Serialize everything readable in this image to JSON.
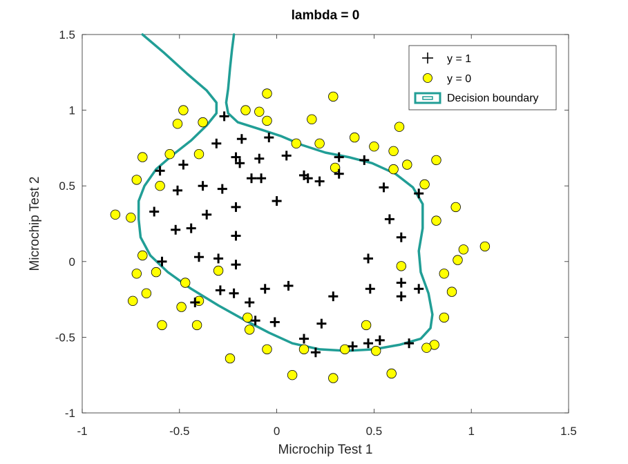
{
  "chart_data": {
    "type": "scatter",
    "title": "lambda = 0",
    "xlabel": "Microchip Test 1",
    "ylabel": "Microchip Test 2",
    "xlim": [
      -1,
      1.5
    ],
    "ylim": [
      -1,
      1.5
    ],
    "xticks": [
      "-1",
      "-0.5",
      "0",
      "0.5",
      "1",
      "1.5"
    ],
    "yticks": [
      "-1",
      "-0.5",
      "0",
      "0.5",
      "1",
      "1.5"
    ],
    "grid": false,
    "legend_position": "top-right",
    "series": [
      {
        "name": "y = 1",
        "marker": "plus",
        "color": "#000000",
        "points": [
          [
            -0.09,
            0.68
          ],
          [
            -0.21,
            0.69
          ],
          [
            -0.31,
            0.78
          ],
          [
            -0.18,
            0.81
          ],
          [
            -0.27,
            0.96
          ],
          [
            -0.19,
            0.65
          ],
          [
            -0.04,
            0.82
          ],
          [
            0.05,
            0.7
          ],
          [
            0.14,
            0.57
          ],
          [
            0.16,
            0.55
          ],
          [
            0.22,
            0.53
          ],
          [
            0.32,
            0.58
          ],
          [
            0.32,
            0.69
          ],
          [
            0.45,
            0.67
          ],
          [
            0.55,
            0.49
          ],
          [
            0.58,
            0.28
          ],
          [
            0.64,
            0.16
          ],
          [
            0.73,
            0.45
          ],
          [
            0.47,
            0.02
          ],
          [
            0.64,
            -0.14
          ],
          [
            0.73,
            -0.18
          ],
          [
            0.64,
            -0.23
          ],
          [
            0.48,
            -0.18
          ],
          [
            0.29,
            -0.23
          ],
          [
            0.23,
            -0.41
          ],
          [
            0.14,
            -0.51
          ],
          [
            0.2,
            -0.6
          ],
          [
            0.39,
            -0.56
          ],
          [
            0.47,
            -0.54
          ],
          [
            0.53,
            -0.52
          ],
          [
            0.68,
            -0.54
          ],
          [
            0.06,
            -0.16
          ],
          [
            -0.06,
            -0.18
          ],
          [
            -0.14,
            -0.27
          ],
          [
            -0.11,
            -0.39
          ],
          [
            -0.01,
            -0.4
          ],
          [
            -0.22,
            -0.21
          ],
          [
            -0.29,
            -0.19
          ],
          [
            -0.21,
            -0.02
          ],
          [
            -0.3,
            0.02
          ],
          [
            -0.4,
            0.03
          ],
          [
            -0.59,
            0.0
          ],
          [
            -0.63,
            0.33
          ],
          [
            -0.52,
            0.21
          ],
          [
            -0.44,
            0.22
          ],
          [
            -0.36,
            0.31
          ],
          [
            -0.21,
            0.17
          ],
          [
            -0.21,
            0.36
          ],
          [
            -0.08,
            0.55
          ],
          [
            -0.13,
            0.55
          ],
          [
            -0.28,
            0.48
          ],
          [
            -0.38,
            0.5
          ],
          [
            -0.51,
            0.47
          ],
          [
            -0.48,
            0.64
          ],
          [
            -0.6,
            0.6
          ],
          [
            0.0,
            0.4
          ],
          [
            -0.42,
            -0.27
          ]
        ]
      },
      {
        "name": "y = 0",
        "marker": "circle",
        "color": "#ffff00",
        "points": [
          [
            -0.05,
            1.11
          ],
          [
            -0.48,
            1.0
          ],
          [
            -0.16,
            1.0
          ],
          [
            -0.09,
            0.99
          ],
          [
            -0.38,
            0.92
          ],
          [
            -0.05,
            0.93
          ],
          [
            -0.51,
            0.91
          ],
          [
            0.18,
            0.94
          ],
          [
            0.29,
            1.09
          ],
          [
            0.4,
            0.82
          ],
          [
            0.6,
            0.73
          ],
          [
            0.63,
            0.89
          ],
          [
            0.1,
            0.78
          ],
          [
            0.22,
            0.78
          ],
          [
            -0.4,
            0.71
          ],
          [
            -0.55,
            0.71
          ],
          [
            -0.69,
            0.69
          ],
          [
            0.5,
            0.76
          ],
          [
            0.82,
            0.67
          ],
          [
            0.67,
            0.64
          ],
          [
            0.3,
            0.62
          ],
          [
            0.6,
            0.61
          ],
          [
            0.76,
            0.51
          ],
          [
            -0.6,
            0.5
          ],
          [
            -0.72,
            0.54
          ],
          [
            -0.83,
            0.31
          ],
          [
            -0.75,
            0.29
          ],
          [
            0.82,
            0.27
          ],
          [
            0.92,
            0.36
          ],
          [
            0.96,
            0.08
          ],
          [
            1.07,
            0.1
          ],
          [
            0.93,
            0.01
          ],
          [
            0.64,
            -0.03
          ],
          [
            0.86,
            -0.08
          ],
          [
            0.9,
            -0.2
          ],
          [
            0.86,
            -0.37
          ],
          [
            0.81,
            -0.55
          ],
          [
            0.77,
            -0.57
          ],
          [
            0.51,
            -0.59
          ],
          [
            0.46,
            -0.42
          ],
          [
            0.35,
            -0.58
          ],
          [
            0.14,
            -0.58
          ],
          [
            0.08,
            -0.75
          ],
          [
            0.29,
            -0.77
          ],
          [
            0.59,
            -0.74
          ],
          [
            -0.05,
            -0.58
          ],
          [
            -0.24,
            -0.64
          ],
          [
            -0.14,
            -0.45
          ],
          [
            -0.15,
            -0.37
          ],
          [
            -0.3,
            -0.06
          ],
          [
            -0.41,
            -0.42
          ],
          [
            -0.4,
            -0.26
          ],
          [
            -0.47,
            -0.14
          ],
          [
            -0.49,
            -0.3
          ],
          [
            -0.59,
            -0.42
          ],
          [
            -0.62,
            -0.07
          ],
          [
            -0.69,
            0.04
          ],
          [
            -0.72,
            -0.08
          ],
          [
            -0.67,
            -0.21
          ],
          [
            -0.74,
            -0.26
          ]
        ]
      },
      {
        "name": "Decision boundary",
        "marker": "line",
        "color": "#219e96",
        "paths": [
          [
            [
              -0.69,
              1.5
            ],
            [
              -0.58,
              1.38
            ],
            [
              -0.46,
              1.24
            ],
            [
              -0.36,
              1.13
            ],
            [
              -0.31,
              1.05
            ],
            [
              -0.31,
              0.98
            ],
            [
              -0.36,
              0.9
            ],
            [
              -0.44,
              0.8
            ],
            [
              -0.53,
              0.71
            ],
            [
              -0.62,
              0.61
            ],
            [
              -0.68,
              0.5
            ],
            [
              -0.71,
              0.4
            ],
            [
              -0.71,
              0.28
            ],
            [
              -0.7,
              0.16
            ],
            [
              -0.65,
              0.04
            ],
            [
              -0.56,
              -0.07
            ],
            [
              -0.44,
              -0.18
            ],
            [
              -0.3,
              -0.29
            ],
            [
              -0.16,
              -0.39
            ],
            [
              -0.04,
              -0.47
            ],
            [
              0.08,
              -0.54
            ],
            [
              0.22,
              -0.58
            ],
            [
              0.36,
              -0.59
            ],
            [
              0.5,
              -0.58
            ],
            [
              0.63,
              -0.55
            ],
            [
              0.74,
              -0.51
            ],
            [
              0.79,
              -0.44
            ],
            [
              0.8,
              -0.35
            ],
            [
              0.78,
              -0.21
            ],
            [
              0.74,
              -0.07
            ],
            [
              0.73,
              0.07
            ],
            [
              0.75,
              0.22
            ],
            [
              0.75,
              0.38
            ],
            [
              0.7,
              0.49
            ],
            [
              0.61,
              0.58
            ],
            [
              0.49,
              0.65
            ],
            [
              0.37,
              0.69
            ],
            [
              0.25,
              0.72
            ],
            [
              0.13,
              0.77
            ],
            [
              0.02,
              0.83
            ],
            [
              -0.1,
              0.88
            ],
            [
              -0.2,
              0.92
            ],
            [
              -0.25,
              0.98
            ],
            [
              -0.26,
              1.05
            ],
            [
              -0.25,
              1.14
            ],
            [
              -0.24,
              1.28
            ],
            [
              -0.23,
              1.4
            ],
            [
              -0.22,
              1.5
            ]
          ]
        ]
      }
    ]
  },
  "colors": {
    "boundary": "#219e96",
    "positive": "#000000",
    "negative_fill": "#ffff00",
    "negative_edge": "#000000",
    "axis": "#262626"
  }
}
